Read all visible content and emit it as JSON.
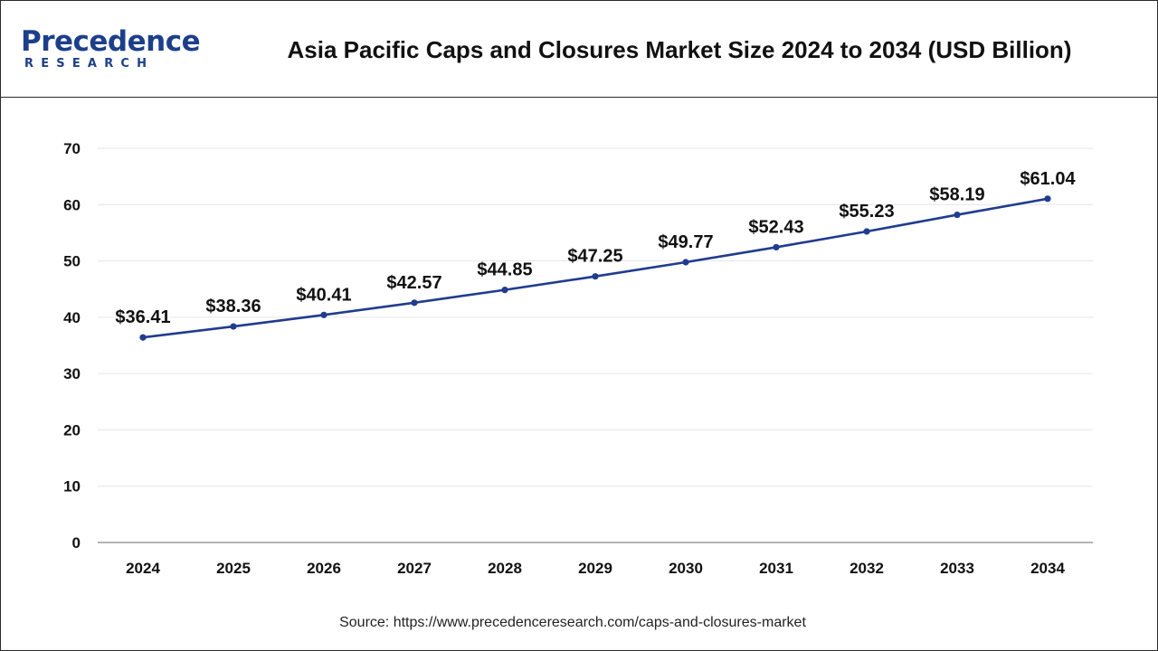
{
  "brand": {
    "name": "Precedence",
    "sub": "RESEARCH"
  },
  "title": "Asia Pacific Caps and Closures Market Size 2024 to 2034 (USD Billion)",
  "source": "Source: https://www.precedenceresearch.com/caps-and-closures-market",
  "colors": {
    "line": "#1f3c8e",
    "marker": "#1f3c8e",
    "grid": "#e6e6e6",
    "axis": "#888888",
    "brand": "#1d3f8a"
  },
  "chart_data": {
    "type": "line",
    "title": "Asia Pacific Caps and Closures Market Size 2024 to 2034 (USD Billion)",
    "xlabel": "",
    "ylabel": "",
    "categories": [
      "2024",
      "2025",
      "2026",
      "2027",
      "2028",
      "2029",
      "2030",
      "2031",
      "2032",
      "2033",
      "2034"
    ],
    "series": [
      {
        "values": [
          36.41,
          38.36,
          40.41,
          42.57,
          44.85,
          47.25,
          49.77,
          52.43,
          55.23,
          58.19,
          61.04
        ],
        "labels": [
          "$36.41",
          "$38.36",
          "$40.41",
          "$42.57",
          "$44.85",
          "$47.25",
          "$49.77",
          "$52.43",
          "$55.23",
          "$58.19",
          "$61.04"
        ]
      }
    ],
    "ylim": [
      0,
      70
    ],
    "yticks": [
      "0",
      "10",
      "20",
      "30",
      "40",
      "50",
      "60",
      "70"
    ],
    "grid": true,
    "legend": "none"
  }
}
